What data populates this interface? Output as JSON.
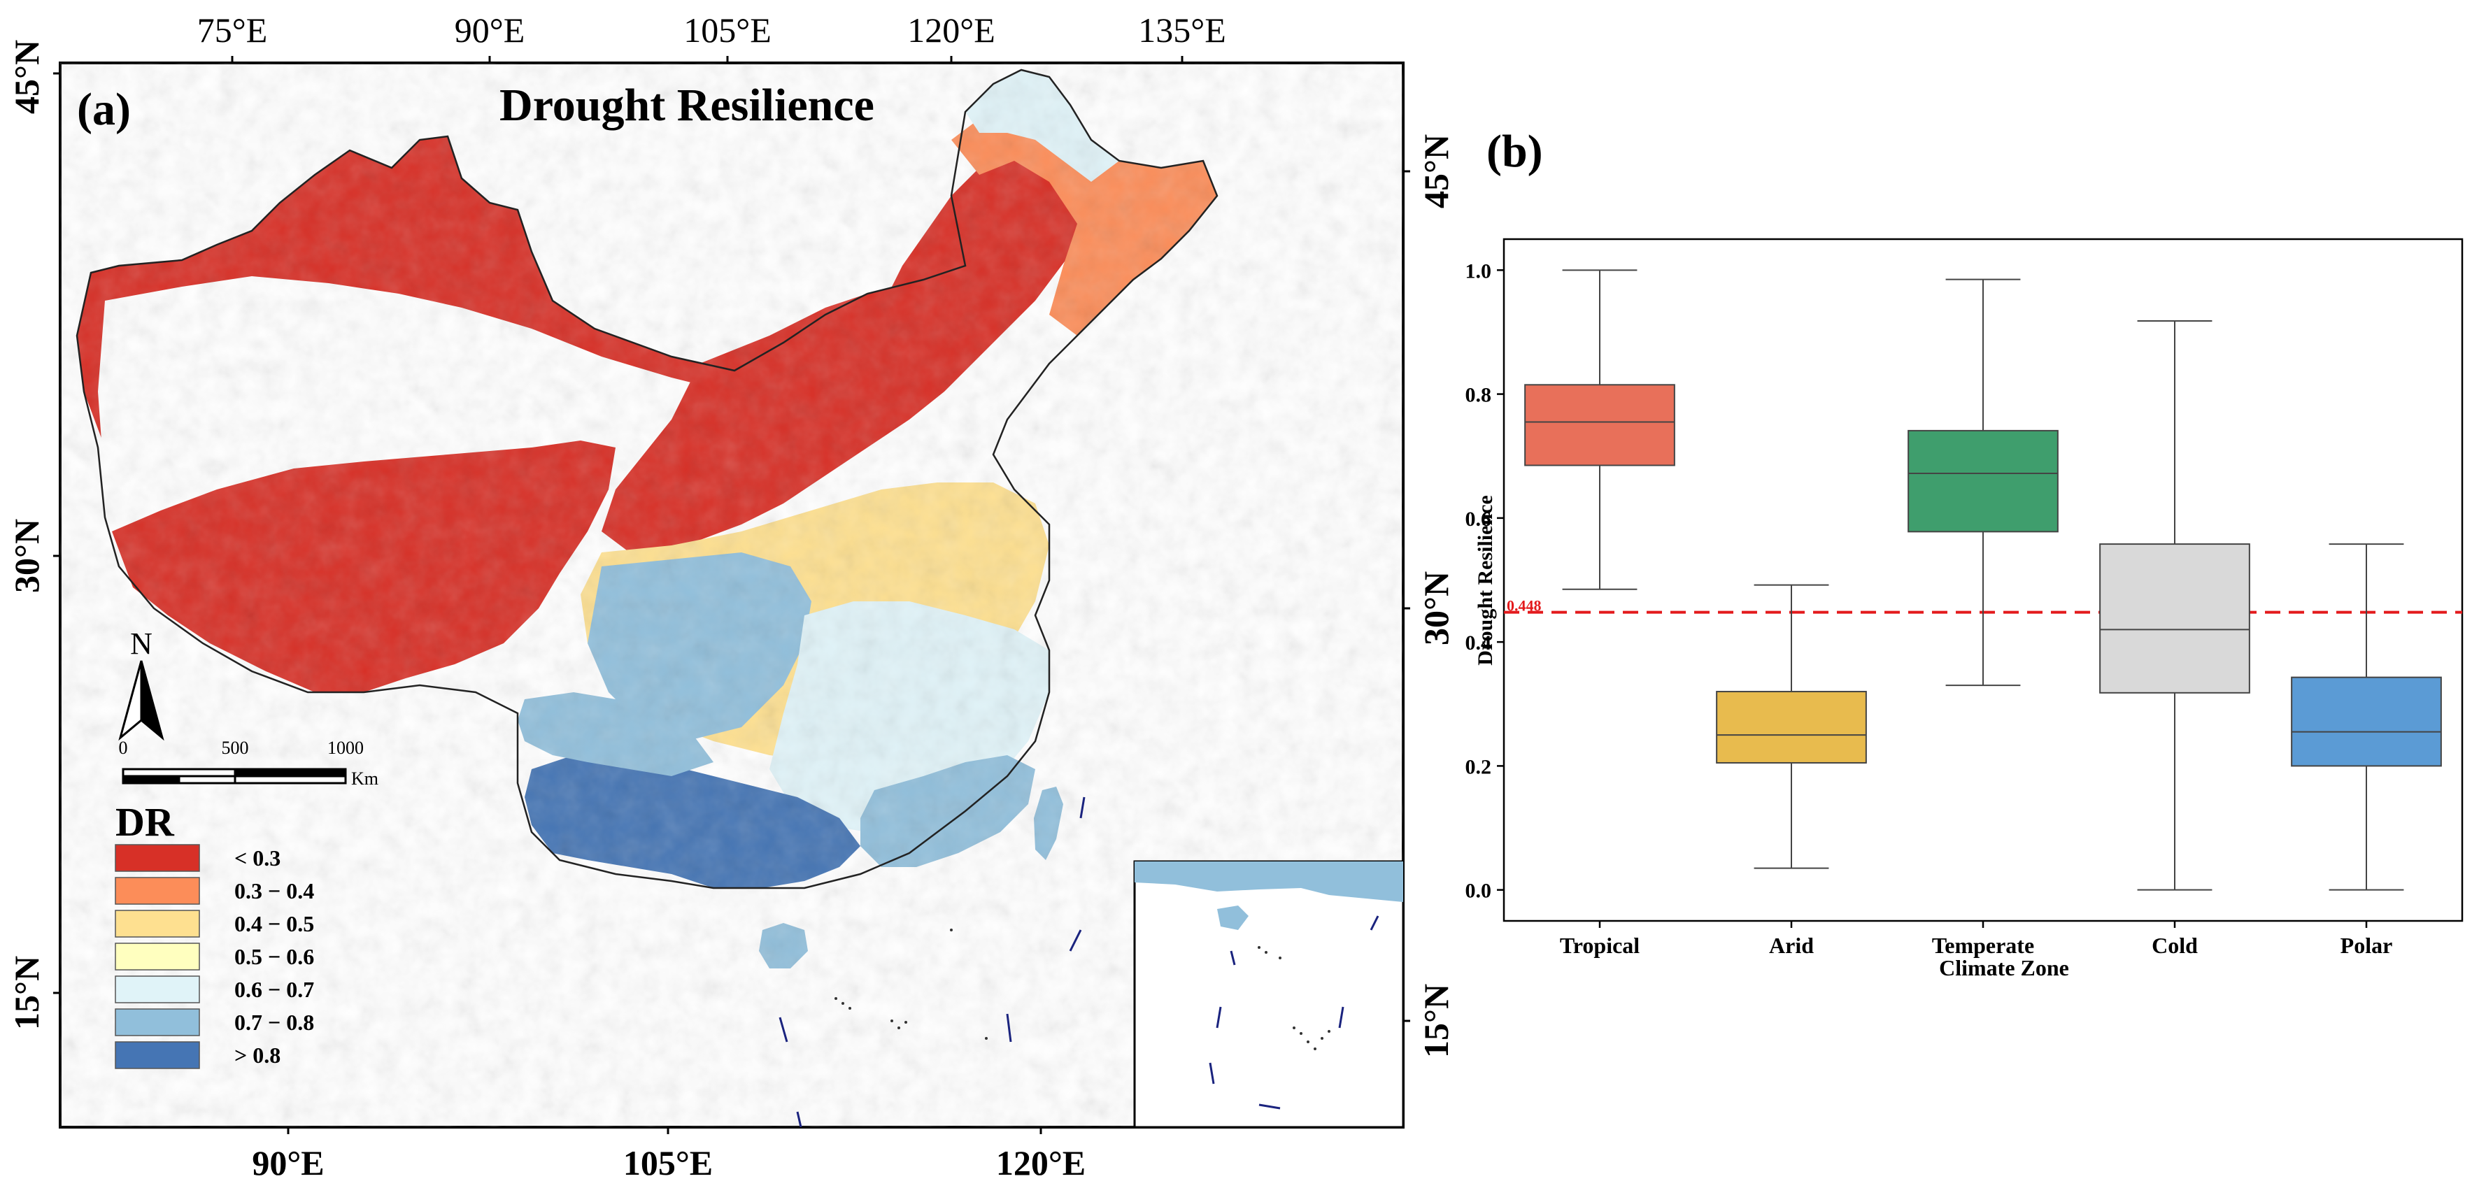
{
  "panel_a": {
    "label": "(a)",
    "title": "Drought Resilience",
    "top_lon_labels": [
      "75°E",
      "90°E",
      "105°E",
      "120°E",
      "135°E"
    ],
    "bottom_lon_labels": [
      "90°E",
      "105°E",
      "120°E"
    ],
    "left_lat_labels": [
      "45°N",
      "30°N",
      "15°N"
    ],
    "right_lat_labels": [
      "45°N",
      "30°N",
      "15°N"
    ],
    "north_arrow": "N",
    "scale_bar": {
      "ticks": [
        "0",
        "500",
        "1000"
      ],
      "unit": "Km"
    },
    "legend": {
      "title": "DR",
      "items": [
        {
          "label": "<  0.3",
          "color": "#d73027"
        },
        {
          "label": "0.3 − 0.4",
          "color": "#fc8d59"
        },
        {
          "label": "0.4 − 0.5",
          "color": "#fee090"
        },
        {
          "label": "0.5 − 0.6",
          "color": "#ffffbf"
        },
        {
          "label": "0.6 − 0.7",
          "color": "#e0f3f8"
        },
        {
          "label": "0.7 − 0.8",
          "color": "#91bfdb"
        },
        {
          "label": ">  0.8",
          "color": "#4575b4"
        }
      ]
    }
  },
  "chart_data": {
    "type": "box",
    "panel_label": "(b)",
    "title": "",
    "xlabel": "Climate Zone",
    "ylabel": "Drought Resilience",
    "ylim": [
      -0.05,
      1.05
    ],
    "yticks": [
      0.0,
      0.2,
      0.4,
      0.6,
      0.8,
      1.0
    ],
    "ytick_labels": [
      "0.0",
      "0.2",
      "0.4",
      "0.6",
      "0.8",
      "1.0"
    ],
    "reference_line": {
      "value": 0.448,
      "label": "0.448",
      "color": "#e31a1c",
      "style": "dashed"
    },
    "categories": [
      "Tropical",
      "Arid",
      "Temperate",
      "Cold",
      "Polar"
    ],
    "boxes": [
      {
        "name": "Tropical",
        "whisker_low": 0.485,
        "q1": 0.685,
        "median": 0.755,
        "q3": 0.815,
        "whisker_high": 1.0,
        "color": "#e8705a"
      },
      {
        "name": "Arid",
        "whisker_low": 0.035,
        "q1": 0.205,
        "median": 0.25,
        "q3": 0.32,
        "whisker_high": 0.492,
        "color": "#e8bb4e"
      },
      {
        "name": "Temperate",
        "whisker_low": 0.33,
        "q1": 0.578,
        "median": 0.672,
        "q3": 0.741,
        "whisker_high": 0.985,
        "color": "#3f9e6d"
      },
      {
        "name": "Cold",
        "whisker_low": 0.0,
        "q1": 0.318,
        "median": 0.42,
        "q3": 0.558,
        "whisker_high": 0.918,
        "color": "#d9d9d9"
      },
      {
        "name": "Polar",
        "whisker_low": 0.0,
        "q1": 0.2,
        "median": 0.255,
        "q3": 0.343,
        "whisker_high": 0.558,
        "color": "#5b9bd5"
      }
    ]
  }
}
